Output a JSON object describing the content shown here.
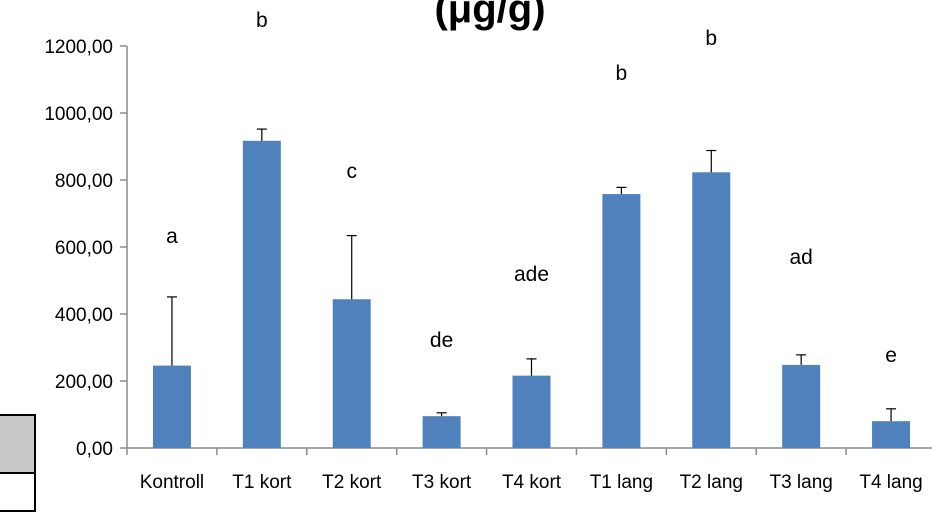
{
  "chart_data": {
    "type": "bar",
    "title": "",
    "xlabel": "",
    "ylabel": "",
    "categories": [
      "Kontroll",
      "T1 kort",
      "T2 kort",
      "T3 kort",
      "T4 kort",
      "T1 lang",
      "T2 lang",
      "T3 lang",
      "T4 lang"
    ],
    "values": [
      246,
      917,
      444,
      95,
      216,
      758,
      823,
      248,
      80
    ],
    "error_upper": [
      205,
      35,
      190,
      10,
      50,
      20,
      65,
      30,
      37
    ],
    "significance_labels": [
      "a",
      "b",
      "c",
      "de",
      "ade",
      "b",
      "b",
      "ad",
      "e"
    ],
    "ylim": [
      0,
      1200
    ],
    "yticks": [
      0,
      200,
      400,
      600,
      800,
      1000,
      1200
    ],
    "ytick_labels": [
      "0,00",
      "200,00",
      "400,00",
      "600,00",
      "800,00",
      "1000,00",
      "1200,00"
    ],
    "bar_color": "#4f81bd",
    "grid": false,
    "legend": "none"
  },
  "title_fragment": "(μg/g)"
}
